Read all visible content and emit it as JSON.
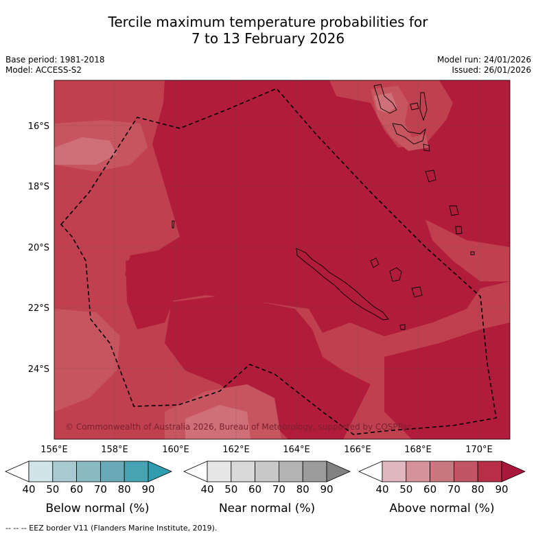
{
  "title_line1": "Tercile maximum temperature probabilities for",
  "title_line2": "7 to 13 February 2026",
  "meta": {
    "base_period": "Base period: 1981-2018",
    "model": "Model: ACCESS-S2",
    "model_run": "Model run: 24/01/2026",
    "issued": "Issued: 26/01/2026"
  },
  "copyright": "© Commonwealth of Australia 2026, Bureau of Meteorology, supported by COSPPac",
  "lon_ticks": [
    "156°E",
    "158°E",
    "160°E",
    "162°E",
    "164°E",
    "166°E",
    "168°E",
    "170°E"
  ],
  "lat_ticks": [
    "16°S",
    "18°S",
    "20°S",
    "22°S",
    "24°S"
  ],
  "colorbars": [
    {
      "label": "Below normal (%)",
      "ticks": [
        "40",
        "50",
        "60",
        "70",
        "80",
        "90"
      ],
      "colors": [
        "#ffffff",
        "#cfe5ea",
        "#a8cbd1",
        "#8ab9c4",
        "#6aa9b8",
        "#47a3b2",
        "#2f9cb0"
      ]
    },
    {
      "label": "Near normal (%)",
      "ticks": [
        "40",
        "50",
        "60",
        "70",
        "80",
        "90"
      ],
      "colors": [
        "#ffffff",
        "#e6e6e6",
        "#d9d9d9",
        "#c8c8c8",
        "#b4b4b4",
        "#9c9c9c",
        "#828282"
      ]
    },
    {
      "label": "Above normal (%)",
      "ticks": [
        "40",
        "50",
        "60",
        "70",
        "80",
        "90"
      ],
      "colors": [
        "#ffffff",
        "#e2b8c0",
        "#d6929b",
        "#cb7780",
        "#c25563",
        "#b82e46",
        "#a8183a"
      ]
    }
  ],
  "colors": {
    "above_80": "#b01c3a",
    "above_70": "#c0404f",
    "above_60": "#c65560",
    "above_50": "#cf7078"
  },
  "footer": "--  --  -- EEZ border V11 (Flanders Marine Institute, 2019)."
}
